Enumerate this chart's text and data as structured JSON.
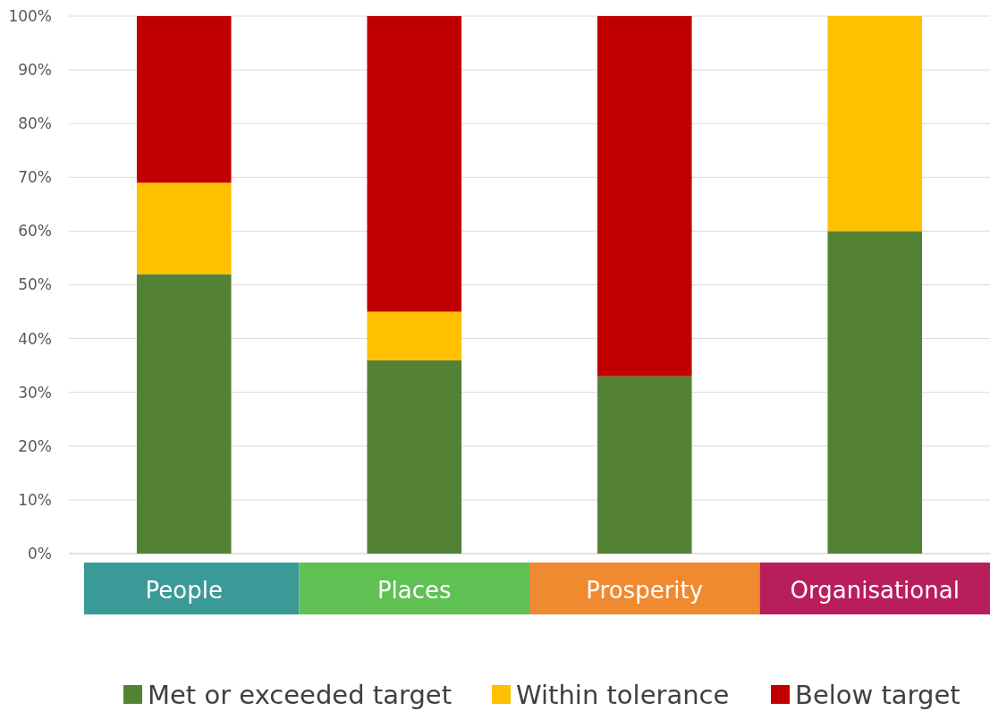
{
  "chart_data": {
    "type": "bar",
    "stacked": true,
    "categories": [
      "People",
      "Places",
      "Prosperity",
      "Organisational"
    ],
    "series": [
      {
        "name": "Met or exceeded target",
        "color": "#548235",
        "values": [
          52,
          36,
          33,
          60
        ]
      },
      {
        "name": "Within tolerance",
        "color": "#ffc000",
        "values": [
          17,
          9,
          0,
          40
        ]
      },
      {
        "name": "Below target",
        "color": "#c00000",
        "values": [
          31,
          55,
          67,
          0
        ]
      }
    ],
    "ylim": [
      0,
      100
    ],
    "yticks": [
      {
        "value": 0,
        "label": "0%"
      },
      {
        "value": 10,
        "label": "10%"
      },
      {
        "value": 20,
        "label": "20%"
      },
      {
        "value": 30,
        "label": "30%"
      },
      {
        "value": 40,
        "label": "40%"
      },
      {
        "value": 50,
        "label": "50%"
      },
      {
        "value": 60,
        "label": "60%"
      },
      {
        "value": 70,
        "label": "70%"
      },
      {
        "value": 80,
        "label": "80%"
      },
      {
        "value": 90,
        "label": "90%"
      },
      {
        "value": 100,
        "label": "100%"
      }
    ],
    "grid": "y",
    "legend": "bottom"
  }
}
